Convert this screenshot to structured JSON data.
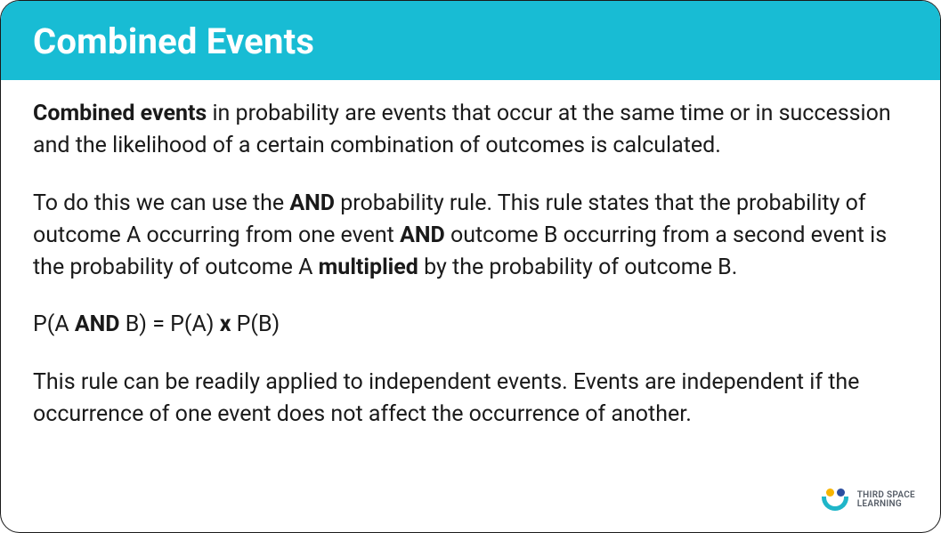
{
  "card": {
    "header_bg": "#18bcd4",
    "title": "Combined Events",
    "title_color": "#ffffff",
    "border_color": "#1a1a1a",
    "content_color": "#1a1a1a",
    "content_fontsize": 25,
    "title_fontsize": 40
  },
  "paragraphs": {
    "p1_strong": "Combined events",
    "p1_rest": " in probability are events that occur at the same time or in succession and the likelihood of a certain combination of outcomes is calculated.",
    "p2_a": "To do this we can use the ",
    "p2_and1": "AND",
    "p2_b": " probability rule. This rule states that the probability of outcome A occurring from one event ",
    "p2_and2": "AND",
    "p2_c": " outcome B occurring from a second event is the probability of outcome A ",
    "p2_mult": "multiplied",
    "p2_d": " by the probability of outcome B.",
    "formula_a": "P(A ",
    "formula_and": "AND",
    "formula_b": " B) = P(A) ",
    "formula_x": "x",
    "formula_c": " P(B)",
    "p3": "This rule can be readily applied to independent events. Events are independent if the occurrence of one event does not affect the occurrence of another."
  },
  "logo": {
    "line1": "THIRD SPACE",
    "line2": "LEARNING",
    "colors": {
      "yellow": "#f7b500",
      "navy": "#2b4ea0",
      "teal": "#1fb6c9",
      "text": "#555c66"
    }
  }
}
